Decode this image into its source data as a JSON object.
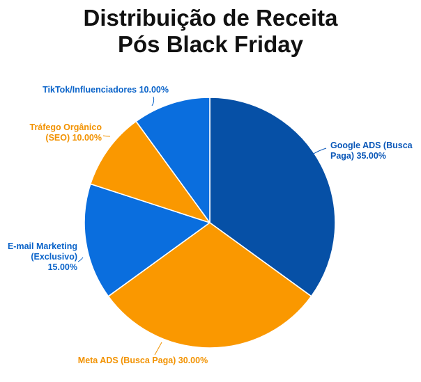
{
  "chart_data": {
    "type": "pie",
    "title_lines": [
      "Distribuição de Receita",
      "Pós Black Friday"
    ],
    "slices": [
      {
        "label_lines": [
          "Google ADS (Busca",
          "Paga) 35.00%"
        ],
        "value": 35.0,
        "color": "#0650A6",
        "label_color": "#0A57B8"
      },
      {
        "label_lines": [
          "Meta ADS (Busca Paga) 30.00%"
        ],
        "value": 30.0,
        "color": "#FA9800",
        "label_color": "#F29200"
      },
      {
        "label_lines": [
          "E-mail Marketing",
          "(Exclusivo)",
          "15.00%"
        ],
        "value": 15.0,
        "color": "#0A6EDE",
        "label_color": "#0A63C9"
      },
      {
        "label_lines": [
          "Tráfego Orgânico",
          "(SEO) 10.00%"
        ],
        "value": 10.0,
        "color": "#FA9800",
        "label_color": "#F29200"
      },
      {
        "label_lines": [
          "TikTok/Influenciadores 10.00%"
        ],
        "value": 10.0,
        "color": "#0A6EDE",
        "label_color": "#0A63C9"
      }
    ],
    "start_angle_deg": 0,
    "direction": "clockwise",
    "legend": "none",
    "slice_border_color": "#ffffff"
  }
}
